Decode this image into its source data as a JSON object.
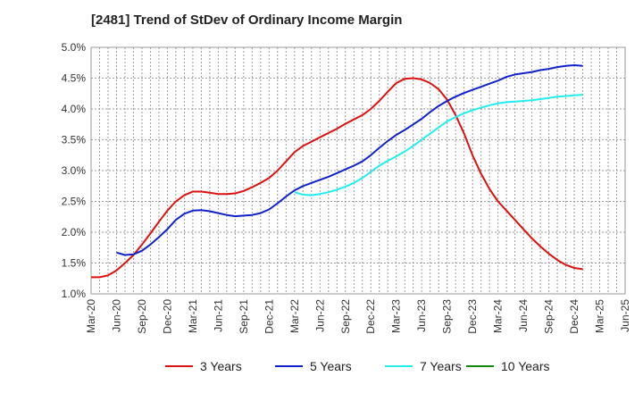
{
  "chart_data": {
    "type": "line",
    "title": "[2481]  Trend of StDev of Ordinary Income Margin",
    "xlabel": "",
    "ylabel": "",
    "ylim": [
      1.0,
      5.0
    ],
    "y_ticks": [
      "1.0%",
      "1.5%",
      "2.0%",
      "2.5%",
      "3.0%",
      "3.5%",
      "4.0%",
      "4.5%",
      "5.0%"
    ],
    "x_ticks": [
      "Mar-20",
      "Jun-20",
      "Sep-20",
      "Dec-20",
      "Mar-21",
      "Jun-21",
      "Sep-21",
      "Dec-21",
      "Mar-22",
      "Jun-22",
      "Sep-22",
      "Dec-22",
      "Mar-23",
      "Jun-23",
      "Sep-23",
      "Dec-23",
      "Mar-24",
      "Jun-24",
      "Sep-24",
      "Dec-24",
      "Mar-25",
      "Jun-25"
    ],
    "grid": true,
    "legend_position": "bottom",
    "series": [
      {
        "name": "3 Years",
        "color": "#dd1111",
        "values": [
          [
            "Mar-20",
            1.27
          ],
          [
            "Apr-20",
            1.27
          ],
          [
            "May-20",
            1.3
          ],
          [
            "Jun-20",
            1.38
          ],
          [
            "Jul-20",
            1.5
          ],
          [
            "Aug-20",
            1.63
          ],
          [
            "Sep-20",
            1.8
          ],
          [
            "Oct-20",
            1.98
          ],
          [
            "Nov-20",
            2.17
          ],
          [
            "Dec-20",
            2.35
          ],
          [
            "Jan-21",
            2.5
          ],
          [
            "Feb-21",
            2.6
          ],
          [
            "Mar-21",
            2.66
          ],
          [
            "Apr-21",
            2.66
          ],
          [
            "May-21",
            2.64
          ],
          [
            "Jun-21",
            2.62
          ],
          [
            "Jul-21",
            2.62
          ],
          [
            "Aug-21",
            2.63
          ],
          [
            "Sep-21",
            2.67
          ],
          [
            "Oct-21",
            2.73
          ],
          [
            "Nov-21",
            2.8
          ],
          [
            "Dec-21",
            2.88
          ],
          [
            "Jan-22",
            3.0
          ],
          [
            "Feb-22",
            3.15
          ],
          [
            "Mar-22",
            3.3
          ],
          [
            "Apr-22",
            3.4
          ],
          [
            "May-22",
            3.47
          ],
          [
            "Jun-22",
            3.54
          ],
          [
            "Jul-22",
            3.61
          ],
          [
            "Aug-22",
            3.68
          ],
          [
            "Sep-22",
            3.76
          ],
          [
            "Oct-22",
            3.83
          ],
          [
            "Nov-22",
            3.9
          ],
          [
            "Dec-22",
            4.0
          ],
          [
            "Jan-23",
            4.13
          ],
          [
            "Feb-23",
            4.28
          ],
          [
            "Mar-23",
            4.42
          ],
          [
            "Apr-23",
            4.49
          ],
          [
            "May-23",
            4.5
          ],
          [
            "Jun-23",
            4.48
          ],
          [
            "Jul-23",
            4.42
          ],
          [
            "Aug-23",
            4.32
          ],
          [
            "Sep-23",
            4.15
          ],
          [
            "Oct-23",
            3.9
          ],
          [
            "Nov-23",
            3.6
          ],
          [
            "Dec-23",
            3.25
          ],
          [
            "Jan-24",
            2.95
          ],
          [
            "Feb-24",
            2.7
          ],
          [
            "Mar-24",
            2.5
          ],
          [
            "Apr-24",
            2.35
          ],
          [
            "May-24",
            2.2
          ],
          [
            "Jun-24",
            2.05
          ],
          [
            "Jul-24",
            1.9
          ],
          [
            "Aug-24",
            1.77
          ],
          [
            "Sep-24",
            1.65
          ],
          [
            "Oct-24",
            1.55
          ],
          [
            "Nov-24",
            1.47
          ],
          [
            "Dec-24",
            1.42
          ],
          [
            "Jan-25",
            1.4
          ]
        ]
      },
      {
        "name": "5 Years",
        "color": "#1122cc",
        "values": [
          [
            "Jun-20",
            1.67
          ],
          [
            "Jul-20",
            1.63
          ],
          [
            "Aug-20",
            1.64
          ],
          [
            "Sep-20",
            1.7
          ],
          [
            "Oct-20",
            1.8
          ],
          [
            "Nov-20",
            1.92
          ],
          [
            "Dec-20",
            2.05
          ],
          [
            "Jan-21",
            2.2
          ],
          [
            "Feb-21",
            2.3
          ],
          [
            "Mar-21",
            2.35
          ],
          [
            "Apr-21",
            2.36
          ],
          [
            "May-21",
            2.34
          ],
          [
            "Jun-21",
            2.31
          ],
          [
            "Jul-21",
            2.28
          ],
          [
            "Aug-21",
            2.26
          ],
          [
            "Sep-21",
            2.27
          ],
          [
            "Oct-21",
            2.28
          ],
          [
            "Nov-21",
            2.31
          ],
          [
            "Dec-21",
            2.37
          ],
          [
            "Jan-22",
            2.47
          ],
          [
            "Feb-22",
            2.58
          ],
          [
            "Mar-22",
            2.68
          ],
          [
            "Apr-22",
            2.75
          ],
          [
            "May-22",
            2.8
          ],
          [
            "Jun-22",
            2.85
          ],
          [
            "Jul-22",
            2.9
          ],
          [
            "Aug-22",
            2.96
          ],
          [
            "Sep-22",
            3.02
          ],
          [
            "Oct-22",
            3.08
          ],
          [
            "Nov-22",
            3.15
          ],
          [
            "Dec-22",
            3.25
          ],
          [
            "Jan-23",
            3.37
          ],
          [
            "Feb-23",
            3.48
          ],
          [
            "Mar-23",
            3.58
          ],
          [
            "Apr-23",
            3.66
          ],
          [
            "May-23",
            3.75
          ],
          [
            "Jun-23",
            3.84
          ],
          [
            "Jul-23",
            3.95
          ],
          [
            "Aug-23",
            4.05
          ],
          [
            "Sep-23",
            4.13
          ],
          [
            "Oct-23",
            4.2
          ],
          [
            "Nov-23",
            4.26
          ],
          [
            "Dec-23",
            4.31
          ],
          [
            "Jan-24",
            4.36
          ],
          [
            "Feb-24",
            4.41
          ],
          [
            "Mar-24",
            4.46
          ],
          [
            "Apr-24",
            4.52
          ],
          [
            "May-24",
            4.56
          ],
          [
            "Jun-24",
            4.58
          ],
          [
            "Jul-24",
            4.6
          ],
          [
            "Aug-24",
            4.63
          ],
          [
            "Sep-24",
            4.65
          ],
          [
            "Oct-24",
            4.68
          ],
          [
            "Nov-24",
            4.7
          ],
          [
            "Dec-24",
            4.71
          ],
          [
            "Jan-25",
            4.7
          ]
        ]
      },
      {
        "name": "7 Years",
        "color": "#22eeee",
        "values": [
          [
            "Mar-22",
            2.65
          ],
          [
            "Apr-22",
            2.61
          ],
          [
            "May-22",
            2.6
          ],
          [
            "Jun-22",
            2.62
          ],
          [
            "Jul-22",
            2.65
          ],
          [
            "Aug-22",
            2.69
          ],
          [
            "Sep-22",
            2.74
          ],
          [
            "Oct-22",
            2.8
          ],
          [
            "Nov-22",
            2.88
          ],
          [
            "Dec-22",
            2.98
          ],
          [
            "Jan-23",
            3.08
          ],
          [
            "Feb-23",
            3.16
          ],
          [
            "Mar-23",
            3.23
          ],
          [
            "Apr-23",
            3.31
          ],
          [
            "May-23",
            3.4
          ],
          [
            "Jun-23",
            3.5
          ],
          [
            "Jul-23",
            3.6
          ],
          [
            "Aug-23",
            3.7
          ],
          [
            "Sep-23",
            3.8
          ],
          [
            "Oct-23",
            3.87
          ],
          [
            "Nov-23",
            3.93
          ],
          [
            "Dec-23",
            3.98
          ],
          [
            "Jan-24",
            4.02
          ],
          [
            "Feb-24",
            4.06
          ],
          [
            "Mar-24",
            4.09
          ],
          [
            "Apr-24",
            4.11
          ],
          [
            "May-24",
            4.12
          ],
          [
            "Jun-24",
            4.13
          ],
          [
            "Jul-24",
            4.14
          ],
          [
            "Aug-24",
            4.16
          ],
          [
            "Sep-24",
            4.18
          ],
          [
            "Oct-24",
            4.2
          ],
          [
            "Nov-24",
            4.21
          ],
          [
            "Dec-24",
            4.22
          ],
          [
            "Jan-25",
            4.23
          ]
        ]
      },
      {
        "name": "10 Years",
        "color": "#118811",
        "values": []
      }
    ]
  }
}
